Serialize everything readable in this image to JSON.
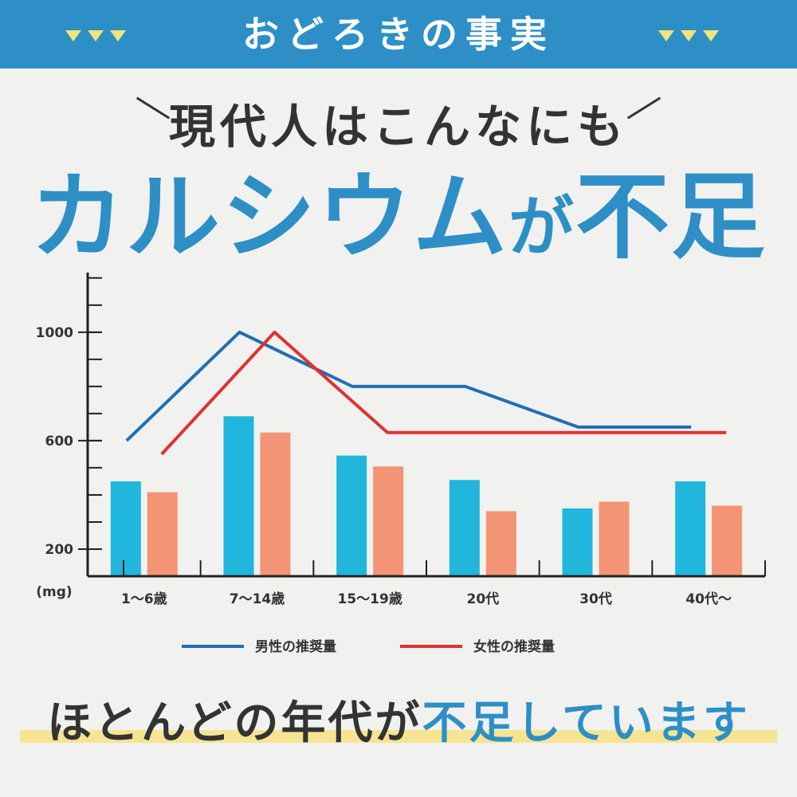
{
  "banner": {
    "title": "おどろきの事実"
  },
  "headline": {
    "line1": "現代人はこんなにも",
    "line2_main": "カルシウム",
    "line2_particle": "が",
    "line2_accent": "不足"
  },
  "colors": {
    "accent": "#2d8fc6",
    "male_line": "#1f6fb3",
    "female_line": "#e03131",
    "male_bar": "#21b6dc",
    "female_bar": "#f39574",
    "highlight": "#f6e492",
    "triangle": "#f5e27a"
  },
  "chart_data": {
    "type": "bar",
    "categories": [
      "1～6歳",
      "7～14歳",
      "15～19歳",
      "20代",
      "30代",
      "40代～"
    ],
    "y_unit": "(mg)",
    "y_ticks": [
      200,
      600,
      1000
    ],
    "ylim": [
      100,
      1220
    ],
    "series": [
      {
        "kind": "bar",
        "values": [
          450,
          690,
          545,
          455,
          350,
          450
        ]
      },
      {
        "kind": "bar",
        "values": [
          410,
          630,
          505,
          340,
          375,
          360
        ]
      },
      {
        "kind": "line",
        "name": "男性の推奨量",
        "values": [
          600,
          1000,
          800,
          800,
          650,
          650
        ]
      },
      {
        "kind": "line",
        "name": "女性の推奨量",
        "values": [
          550,
          1000,
          630,
          630,
          630,
          630
        ]
      }
    ],
    "grid": false,
    "legend": "bottom"
  },
  "footer": {
    "text_main": "ほとんどの年代が",
    "text_accent": "不足しています"
  }
}
